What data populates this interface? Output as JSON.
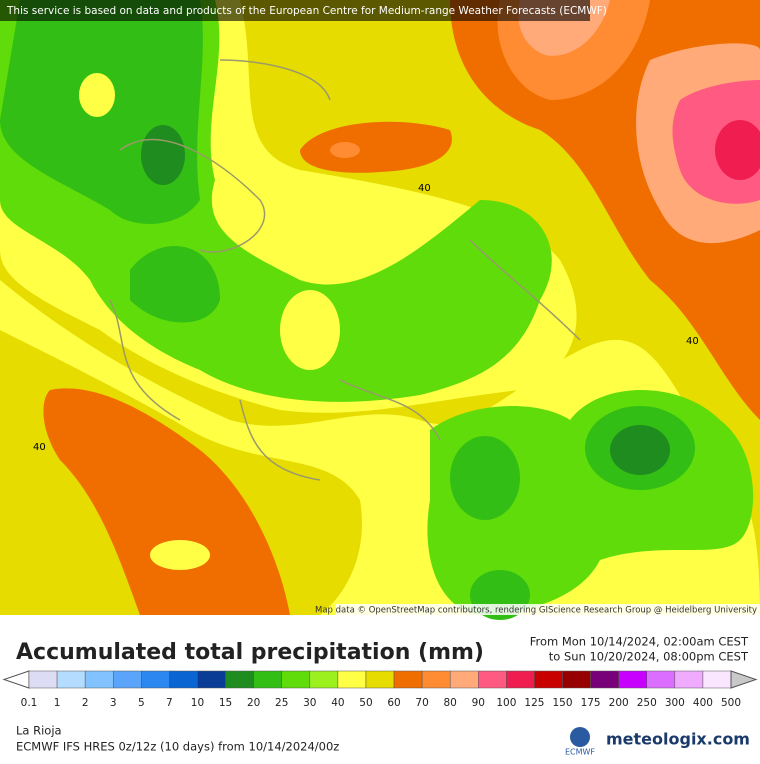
{
  "banner": "This service is based on data and products of the European Centre for Medium-range Weather Forecasts (ECMWF)",
  "attribution": "Map data © OpenStreetMap contributors, rendering GIScience Research Group @ Heidelberg University",
  "contour_labels": [
    "40",
    "40",
    "40"
  ],
  "title": "Accumulated total precipitation (mm)",
  "period": {
    "from": "From Mon 10/14/2024, 02:00am CEST",
    "to": "to Sun 10/20/2024, 08:00pm CEST"
  },
  "legend": {
    "labels": [
      "0.1",
      "1",
      "2",
      "3",
      "5",
      "7",
      "10",
      "15",
      "20",
      "25",
      "30",
      "40",
      "50",
      "60",
      "70",
      "80",
      "90",
      "100",
      "125",
      "150",
      "175",
      "200",
      "250",
      "300",
      "400",
      "500"
    ],
    "colors": [
      "#dcdcf4",
      "#b4dcff",
      "#82c3ff",
      "#5aa5fa",
      "#2d87f0",
      "#0a64d2",
      "#0a3c96",
      "#1e8c1e",
      "#32be14",
      "#5fdc0a",
      "#9bf01e",
      "#ffff46",
      "#e6dc00",
      "#f06e00",
      "#ff8c32",
      "#ffaa78",
      "#ff5a82",
      "#f01e50",
      "#c80000",
      "#960000",
      "#780078",
      "#c800ff",
      "#dc6eff",
      "#f0aaff",
      "#fae6ff"
    ],
    "low_color": "#ffffff",
    "high_color": "#c8c8c8"
  },
  "location": "La Rioja",
  "model": "ECMWF IFS HRES 0z/12z (10 days) from  10/14/2024/00z",
  "logos": {
    "ecmwf": "ECMWF",
    "brand": "meteologix.com"
  }
}
